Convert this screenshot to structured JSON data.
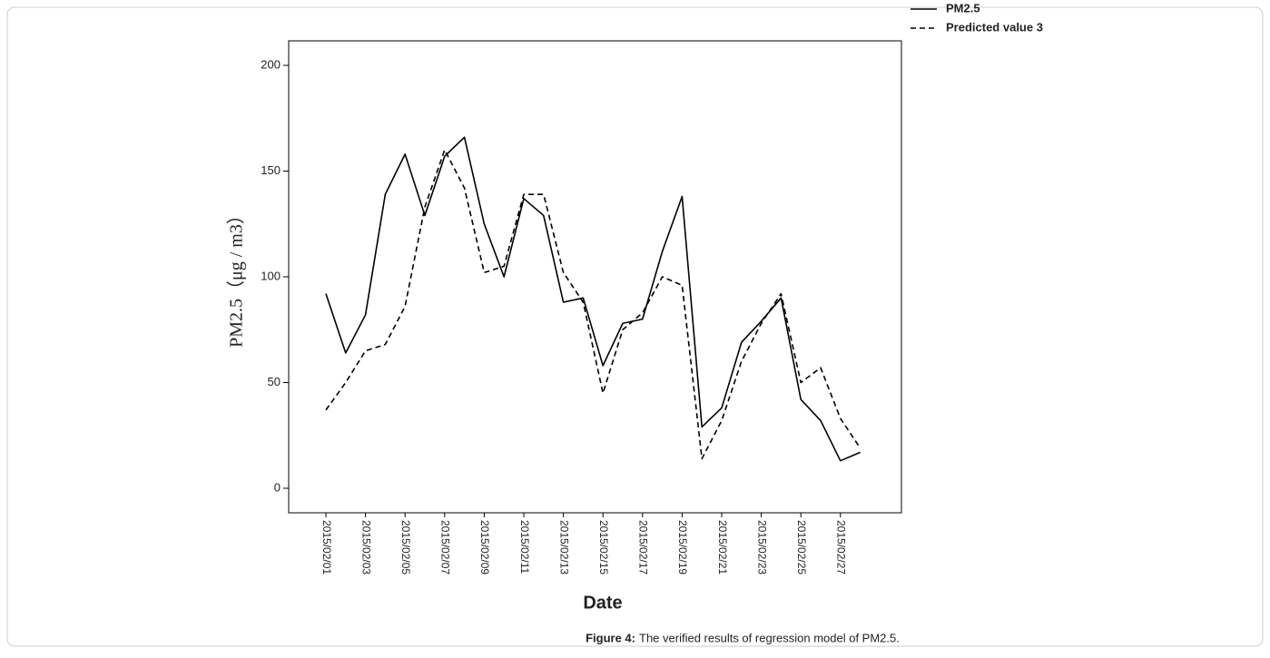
{
  "chart_data": {
    "type": "line",
    "y_label": "PM2.5（μg / m3）",
    "x_label": "Date",
    "caption_label": "Figure 4:",
    "caption": "The verified results of regression model of PM2.5.",
    "categories": [
      "2015/02/01",
      null,
      "2015/02/03",
      null,
      "2015/02/05",
      null,
      "2015/02/07",
      null,
      "2015/02/09",
      null,
      "2015/02/11",
      null,
      "2015/02/13",
      null,
      "2015/02/15",
      null,
      "2015/02/17",
      null,
      "2015/02/19",
      null,
      "2015/02/21",
      null,
      "2015/02/23",
      null,
      "2015/02/25",
      null,
      "2015/02/27",
      null
    ],
    "series": [
      {
        "name": "PM2.5",
        "color": "#000000",
        "dash": false,
        "values": [
          92,
          64,
          82,
          139,
          158,
          129,
          157,
          166,
          125,
          100,
          137,
          129,
          88,
          90,
          58,
          78,
          80,
          112,
          138,
          29,
          38,
          69,
          79,
          90,
          42,
          32,
          13,
          17
        ]
      },
      {
        "name": "Predicted value 3",
        "color": "#000000",
        "dash": true,
        "values": [
          37,
          50,
          65,
          68,
          86,
          133,
          160,
          142,
          102,
          105,
          139,
          139,
          102,
          88,
          45,
          75,
          83,
          100,
          96,
          14,
          32,
          60,
          78,
          92,
          50,
          57,
          33,
          19
        ]
      }
    ],
    "ylim": [
      -11.6,
      211.6
    ],
    "yticks": [
      0,
      50,
      100,
      150,
      200
    ],
    "grid": false
  }
}
